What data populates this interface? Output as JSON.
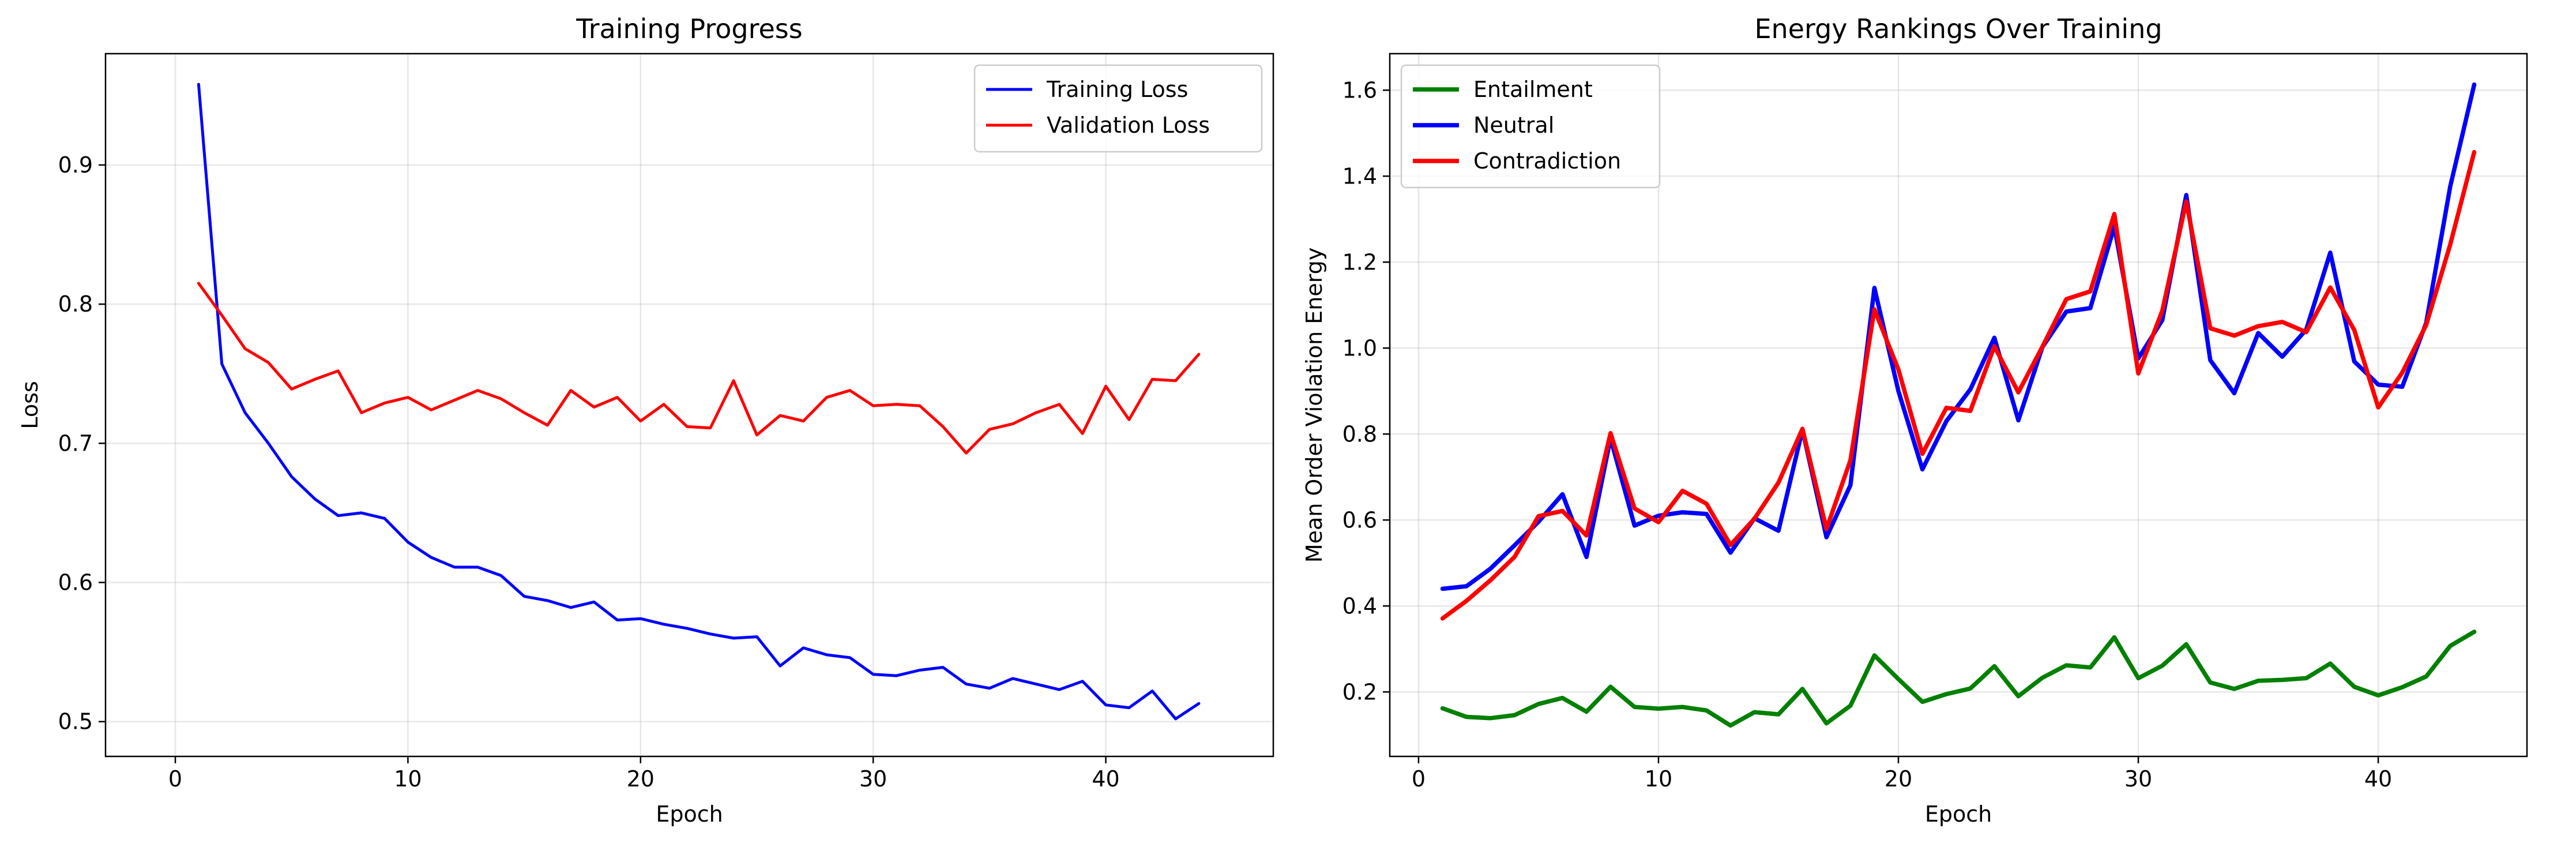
{
  "chart_data": [
    {
      "type": "line",
      "title": "Training Progress",
      "xlabel": "Epoch",
      "ylabel": "Loss",
      "xlim": [
        -3,
        47.2
      ],
      "ylim": [
        0.475,
        0.98
      ],
      "xticks": [
        0,
        10,
        20,
        30,
        40
      ],
      "yticks": [
        0.5,
        0.6,
        0.7,
        0.8,
        0.9
      ],
      "grid": true,
      "legend_position": "upper right",
      "x": [
        1,
        2,
        3,
        4,
        5,
        6,
        7,
        8,
        9,
        10,
        11,
        12,
        13,
        14,
        15,
        16,
        17,
        18,
        19,
        20,
        21,
        22,
        23,
        24,
        25,
        26,
        27,
        28,
        29,
        30,
        31,
        32,
        33,
        34,
        35,
        36,
        37,
        38,
        39,
        40,
        41,
        42,
        43,
        44
      ],
      "series": [
        {
          "name": "Training Loss",
          "color": "#0000ff",
          "values": [
            0.958,
            0.757,
            0.722,
            0.7,
            0.676,
            0.66,
            0.648,
            0.65,
            0.646,
            0.629,
            0.618,
            0.611,
            0.611,
            0.605,
            0.59,
            0.587,
            0.582,
            0.586,
            0.573,
            0.574,
            0.57,
            0.567,
            0.563,
            0.56,
            0.561,
            0.54,
            0.553,
            0.548,
            0.546,
            0.534,
            0.533,
            0.537,
            0.539,
            0.527,
            0.524,
            0.531,
            0.527,
            0.523,
            0.529,
            0.512,
            0.51,
            0.522,
            0.502,
            0.513
          ]
        },
        {
          "name": "Validation Loss",
          "color": "#ff0000",
          "values": [
            0.815,
            0.792,
            0.768,
            0.758,
            0.739,
            0.746,
            0.752,
            0.722,
            0.729,
            0.733,
            0.724,
            0.731,
            0.738,
            0.732,
            0.722,
            0.713,
            0.738,
            0.726,
            0.733,
            0.716,
            0.728,
            0.712,
            0.711,
            0.745,
            0.706,
            0.72,
            0.716,
            0.733,
            0.738,
            0.727,
            0.728,
            0.727,
            0.712,
            0.693,
            0.71,
            0.714,
            0.722,
            0.728,
            0.707,
            0.741,
            0.717,
            0.746,
            0.745,
            0.764
          ]
        }
      ]
    },
    {
      "type": "line",
      "title": "Energy Rankings Over Training",
      "xlabel": "Epoch",
      "ylabel": "Mean Order Violation Energy",
      "xlim": [
        -1.2,
        46.2
      ],
      "ylim": [
        0.05,
        1.685
      ],
      "xticks": [
        0,
        10,
        20,
        30,
        40
      ],
      "yticks": [
        0.2,
        0.4,
        0.6,
        0.8,
        1.0,
        1.2,
        1.4,
        1.6
      ],
      "grid": true,
      "legend_position": "upper left",
      "x": [
        1,
        2,
        3,
        4,
        5,
        6,
        7,
        8,
        9,
        10,
        11,
        12,
        13,
        14,
        15,
        16,
        17,
        18,
        19,
        20,
        21,
        22,
        23,
        24,
        25,
        26,
        27,
        28,
        29,
        30,
        31,
        32,
        33,
        34,
        35,
        36,
        37,
        38,
        39,
        40,
        41,
        42,
        43,
        44
      ],
      "series": [
        {
          "name": "Entailment",
          "color": "#008000",
          "values": [
            0.162,
            0.142,
            0.139,
            0.146,
            0.172,
            0.186,
            0.154,
            0.212,
            0.165,
            0.161,
            0.165,
            0.157,
            0.122,
            0.153,
            0.148,
            0.207,
            0.127,
            0.168,
            0.285,
            0.23,
            0.177,
            0.195,
            0.208,
            0.26,
            0.19,
            0.233,
            0.262,
            0.257,
            0.327,
            0.232,
            0.261,
            0.311,
            0.222,
            0.207,
            0.226,
            0.228,
            0.232,
            0.266,
            0.212,
            0.192,
            0.211,
            0.236,
            0.307,
            0.34
          ]
        },
        {
          "name": "Neutral",
          "color": "#0000ff",
          "values": [
            0.44,
            0.446,
            0.487,
            0.541,
            0.596,
            0.66,
            0.514,
            0.79,
            0.587,
            0.61,
            0.618,
            0.614,
            0.524,
            0.604,
            0.575,
            0.81,
            0.56,
            0.681,
            1.14,
            0.9,
            0.718,
            0.83,
            0.904,
            1.024,
            0.832,
            1.002,
            1.085,
            1.093,
            1.283,
            0.976,
            1.065,
            1.356,
            0.972,
            0.895,
            1.035,
            0.98,
            1.043,
            1.222,
            0.969,
            0.915,
            0.91,
            1.059,
            1.376,
            1.613
          ]
        },
        {
          "name": "Contradiction",
          "color": "#ff0000",
          "values": [
            0.371,
            0.412,
            0.46,
            0.514,
            0.609,
            0.621,
            0.564,
            0.802,
            0.627,
            0.595,
            0.668,
            0.638,
            0.542,
            0.603,
            0.687,
            0.812,
            0.579,
            0.739,
            1.09,
            0.95,
            0.754,
            0.861,
            0.854,
            1.004,
            0.897,
            1.003,
            1.114,
            1.132,
            1.312,
            0.941,
            1.087,
            1.341,
            1.046,
            1.029,
            1.051,
            1.061,
            1.037,
            1.141,
            1.042,
            0.862,
            0.943,
            1.054,
            1.241,
            1.456
          ]
        }
      ]
    }
  ]
}
